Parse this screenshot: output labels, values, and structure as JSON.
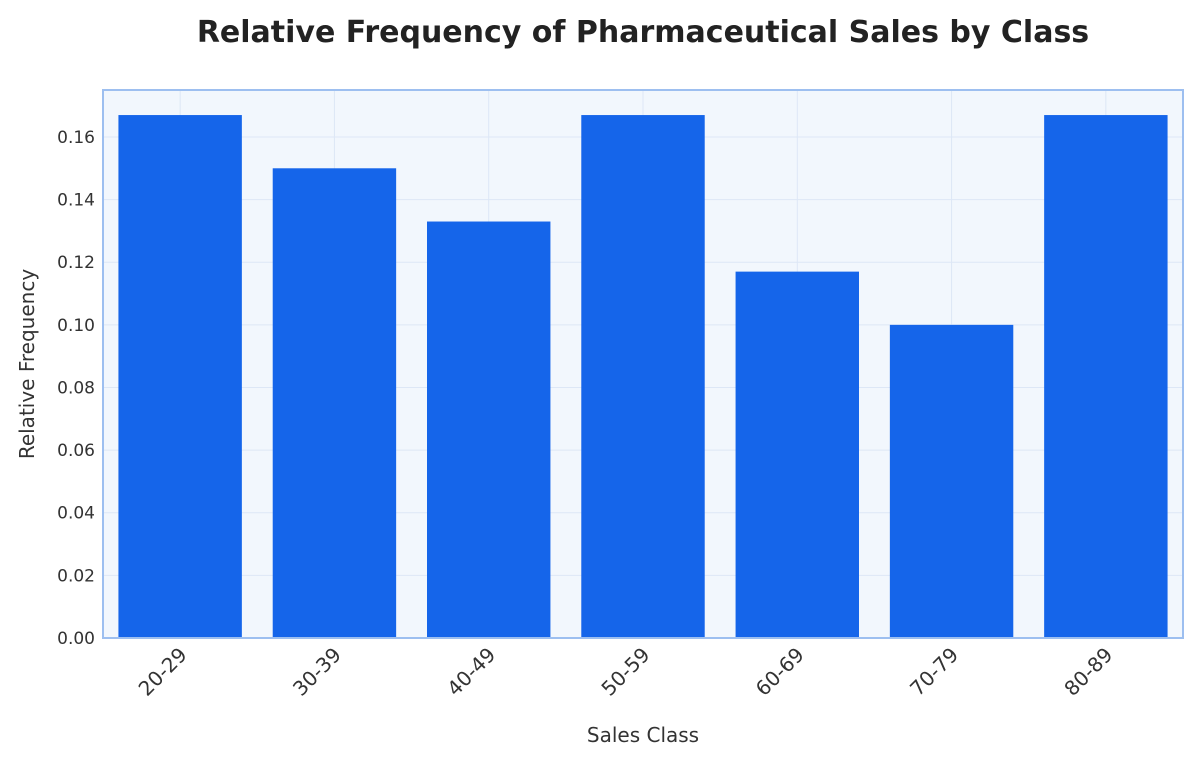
{
  "chart_data": {
    "type": "bar",
    "title": "Relative Frequency of Pharmaceutical Sales by Class",
    "xlabel": "Sales Class",
    "ylabel": "Relative Frequency",
    "categories": [
      "20-29",
      "30-39",
      "40-49",
      "50-59",
      "60-69",
      "70-79",
      "80-89"
    ],
    "values": [
      0.167,
      0.15,
      0.133,
      0.167,
      0.117,
      0.1,
      0.167
    ],
    "ylim": [
      0,
      0.175
    ],
    "yticks": [
      "0.00",
      "0.02",
      "0.04",
      "0.06",
      "0.08",
      "0.10",
      "0.12",
      "0.14",
      "0.16"
    ],
    "grid": true,
    "legend": "none",
    "colors": {
      "bar": "#1565ea",
      "plot_background": "#f2f7fd",
      "plot_border": "#9dbff0",
      "grid": "#dde7f6"
    }
  }
}
